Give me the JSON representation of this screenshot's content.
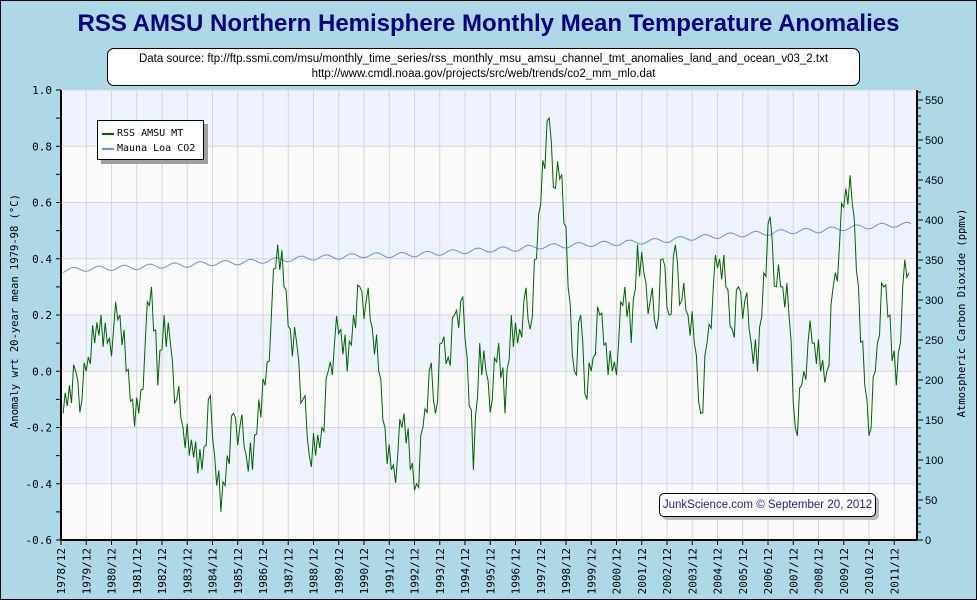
{
  "chart_data": {
    "type": "line",
    "title": "RSS AMSU Northern Hemisphere Monthly Mean Temperature Anomalies",
    "source_lines": [
      "Data source: ftp://ftp.ssmi.com/msu/monthly_time_series/rss_monthly_msu_amsu_channel_tmt_anomalies_land_and_ocean_v03_2.txt",
      "http://www.cmdl.noaa.gov/projects/src/web/trends/co2_mm_mlo.dat"
    ],
    "ylabel": "Anomaly wrt 20-year mean 1979-98 (°C)",
    "y2label": "Atmospheric Carbon Dioxide (ppmv)",
    "ylim": [
      -0.6,
      1.0
    ],
    "y2lim": [
      0,
      562.5
    ],
    "yticks": [
      "1.0",
      "0.8",
      "0.6",
      "0.4",
      "0.2",
      "0.0",
      "-0.2",
      "-0.4",
      "-0.6"
    ],
    "y2ticks": [
      "550",
      "500",
      "450",
      "400",
      "350",
      "300",
      "250",
      "200",
      "150",
      "100",
      "50",
      "0"
    ],
    "xticks": [
      "1978/12",
      "1979/12",
      "1980/12",
      "1981/12",
      "1982/12",
      "1983/12",
      "1984/12",
      "1985/12",
      "1986/12",
      "1987/12",
      "1988/12",
      "1989/12",
      "1990/12",
      "1991/12",
      "1992/12",
      "1993/12",
      "1994/12",
      "1995/12",
      "1996/12",
      "1997/12",
      "1998/12",
      "1999/12",
      "2000/12",
      "2001/12",
      "2002/12",
      "2003/12",
      "2004/12",
      "2005/12",
      "2006/12",
      "2007/12",
      "2008/12",
      "2009/12",
      "2010/12",
      "2011/12"
    ],
    "grid": true,
    "legend_position": "top-left",
    "watermark": "JunkScience.com © September 20, 2012",
    "series": [
      {
        "name": "RSS AMSU MT",
        "color": "#006400",
        "axis": "left",
        "x_start": 1979.0,
        "x_step": 0.25,
        "values": [
          -0.15,
          -0.05,
          0.0,
          -0.1,
          0.05,
          0.1,
          0.2,
          0.1,
          0.15,
          0.2,
          0.0,
          -0.1,
          -0.15,
          0.1,
          0.3,
          -0.05,
          0.2,
          0.1,
          -0.1,
          -0.2,
          -0.3,
          -0.25,
          -0.35,
          -0.1,
          -0.3,
          -0.5,
          -0.3,
          -0.15,
          -0.2,
          -0.3,
          -0.35,
          -0.1,
          -0.05,
          0.2,
          0.45,
          0.3,
          0.15,
          0.1,
          -0.1,
          -0.3,
          -0.3,
          -0.2,
          0.0,
          0.1,
          0.15,
          0.0,
          0.2,
          0.3,
          0.25,
          0.15,
          0.0,
          -0.2,
          -0.35,
          -0.3,
          -0.15,
          -0.35,
          -0.4,
          -0.2,
          0.0,
          -0.15,
          0.1,
          0.05,
          0.2,
          0.25,
          0.05,
          -0.35,
          0.1,
          0.0,
          -0.1,
          0.1,
          -0.15,
          0.2,
          0.1,
          0.25,
          0.15,
          0.4,
          0.75,
          0.9,
          0.65,
          0.7,
          0.3,
          0.0,
          0.2,
          -0.1,
          0.05,
          0.2,
          0.1,
          0.0,
          0.1,
          0.3,
          0.1,
          0.45,
          0.35,
          0.25,
          0.15,
          0.4,
          0.2,
          0.45,
          0.25,
          0.2,
          0.1,
          -0.15,
          0.1,
          0.3,
          0.4,
          0.3,
          0.15,
          0.3,
          0.25,
          0.1,
          0.0,
          0.35,
          0.55,
          0.3,
          0.3,
          0.2,
          -0.2,
          -0.05,
          0.1,
          0.1,
          0.0,
          0.0,
          0.3,
          0.45,
          0.65,
          0.6,
          0.3,
          -0.05,
          -0.2,
          0.1,
          0.3,
          0.2,
          -0.05,
          0.3,
          0.35
        ]
      },
      {
        "name": "Mauna Loa CO2",
        "color": "#6495ed",
        "axis": "right",
        "x_start": 1979.0,
        "x_step": 1,
        "annual_values": [
          337,
          339,
          340,
          341,
          343,
          344,
          346,
          347,
          349,
          351,
          353,
          354,
          356,
          356,
          357,
          359,
          361,
          363,
          364,
          367,
          368,
          370,
          371,
          373,
          375,
          378,
          380,
          382,
          384,
          386,
          387,
          390,
          392,
          394
        ],
        "seasonal_amplitude": 3
      }
    ]
  }
}
